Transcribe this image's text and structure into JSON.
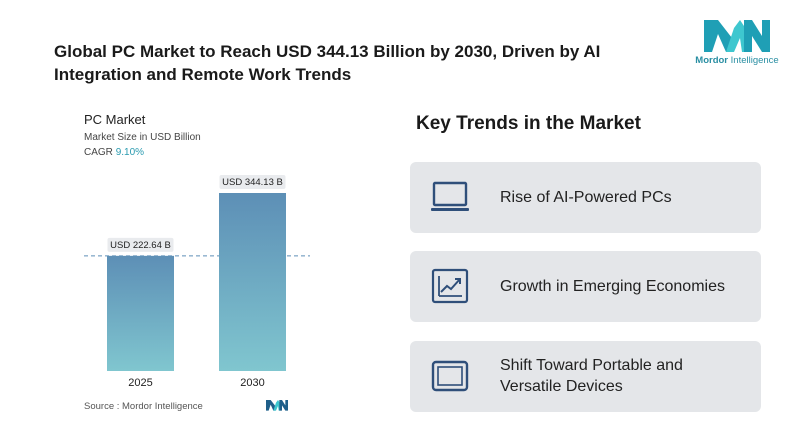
{
  "header": {
    "title_line1": "Global PC Market to Reach USD 344.13 Billion by 2030, Driven by AI",
    "title_line2": "Integration and Remote Work Trends"
  },
  "logo": {
    "brand_part1": "Mordor",
    "brand_part2": "Intelligence",
    "icon": "mordor-logo-icon"
  },
  "chart_info": {
    "title": "PC Market",
    "subtitle": "Market Size in USD Billion",
    "cagr_label": "CAGR",
    "cagr_value": "9.10%"
  },
  "chart_data": {
    "type": "bar",
    "title": "PC Market",
    "ylabel": "Market Size in USD Billion",
    "categories": [
      "2025",
      "2030"
    ],
    "values": [
      222.64,
      344.13
    ],
    "value_labels": [
      "USD 222.64 B",
      "USD 344.13 B"
    ],
    "ylim": [
      0,
      344.13
    ],
    "reference_line": 222.64,
    "cagr": "9.10%",
    "grid": false
  },
  "source": "Source :  Mordor Intelligence",
  "trends": {
    "title": "Key Trends in the Market",
    "items": [
      {
        "line1": "Rise of AI-Powered PCs",
        "line2": "",
        "icon": "laptop-icon"
      },
      {
        "line1": "Growth in Emerging Economies",
        "line2": "",
        "icon": "growth-chart-icon"
      },
      {
        "line1": "Shift Toward Portable and",
        "line2": "Versatile Devices",
        "icon": "tablet-icon"
      }
    ]
  },
  "colors": {
    "bar_top": "#5d8fb6",
    "bar_bottom": "#80c6cf",
    "accent": "#2b9bb0",
    "icon": "#2f4f7a",
    "card_bg": "#e4e6e9"
  }
}
